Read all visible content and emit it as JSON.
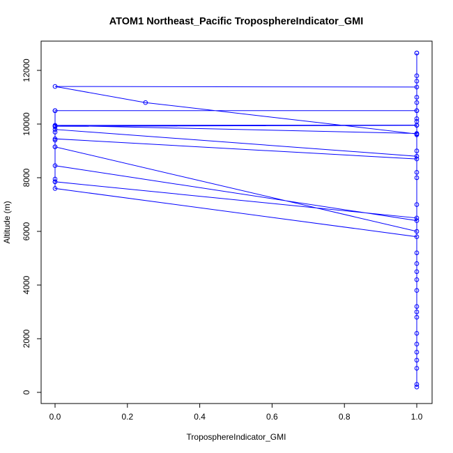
{
  "chart_data": {
    "type": "line",
    "title": "ATOM1 Northeast_Pacific TroposphereIndicator_GMI",
    "xlabel": "TroposphereIndicator_GMI",
    "ylabel": "Altitude (m)",
    "xlim": [
      -0.04,
      1.04
    ],
    "ylim": [
      0,
      12700
    ],
    "x_ticks": [
      0.0,
      0.2,
      0.4,
      0.6,
      0.8,
      1.0
    ],
    "x_tick_labels": [
      "0.0",
      "0.2",
      "0.4",
      "0.6",
      "0.8",
      "1.0"
    ],
    "y_ticks": [
      0,
      2000,
      4000,
      6000,
      8000,
      10000,
      12000
    ],
    "y_tick_labels": [
      "0",
      "2000",
      "4000",
      "6000",
      "8000",
      "10000",
      "12000"
    ],
    "grid": false,
    "legend": "none",
    "series_color": "#0000ff",
    "series": [
      {
        "values_x": [
          1,
          1,
          1,
          1,
          1,
          1,
          1,
          0,
          0,
          0,
          0,
          1,
          1,
          1,
          1,
          1,
          1,
          1,
          1,
          1,
          1,
          1,
          0,
          0,
          0,
          1,
          1,
          1,
          1,
          0,
          0,
          0,
          1,
          1,
          0,
          0,
          1,
          1,
          1,
          1,
          1,
          1,
          0,
          0,
          0,
          0,
          0,
          0,
          1,
          1,
          1,
          1,
          1,
          1,
          0,
          0.25,
          1,
          1,
          1,
          1,
          1
        ],
        "values_y": [
          200,
          900,
          1800,
          2800,
          3800,
          4800,
          5800,
          7600,
          7850,
          7950,
          8450,
          6400,
          5200,
          4200,
          3200,
          2200,
          1200,
          300,
          1500,
          3000,
          4500,
          6500,
          7850,
          9150,
          9450,
          8700,
          8000,
          7000,
          6000,
          9150,
          9400,
          9920,
          9950,
          9960,
          9950,
          9800,
          8800,
          8200,
          9000,
          9600,
          10100,
          10500,
          10500,
          10500,
          10500,
          9700,
          9900,
          9950,
          9650,
          10500,
          11000,
          11800,
          12650,
          11380,
          11400,
          10800,
          9630,
          10200,
          10800,
          11600,
          12650
        ]
      }
    ]
  }
}
